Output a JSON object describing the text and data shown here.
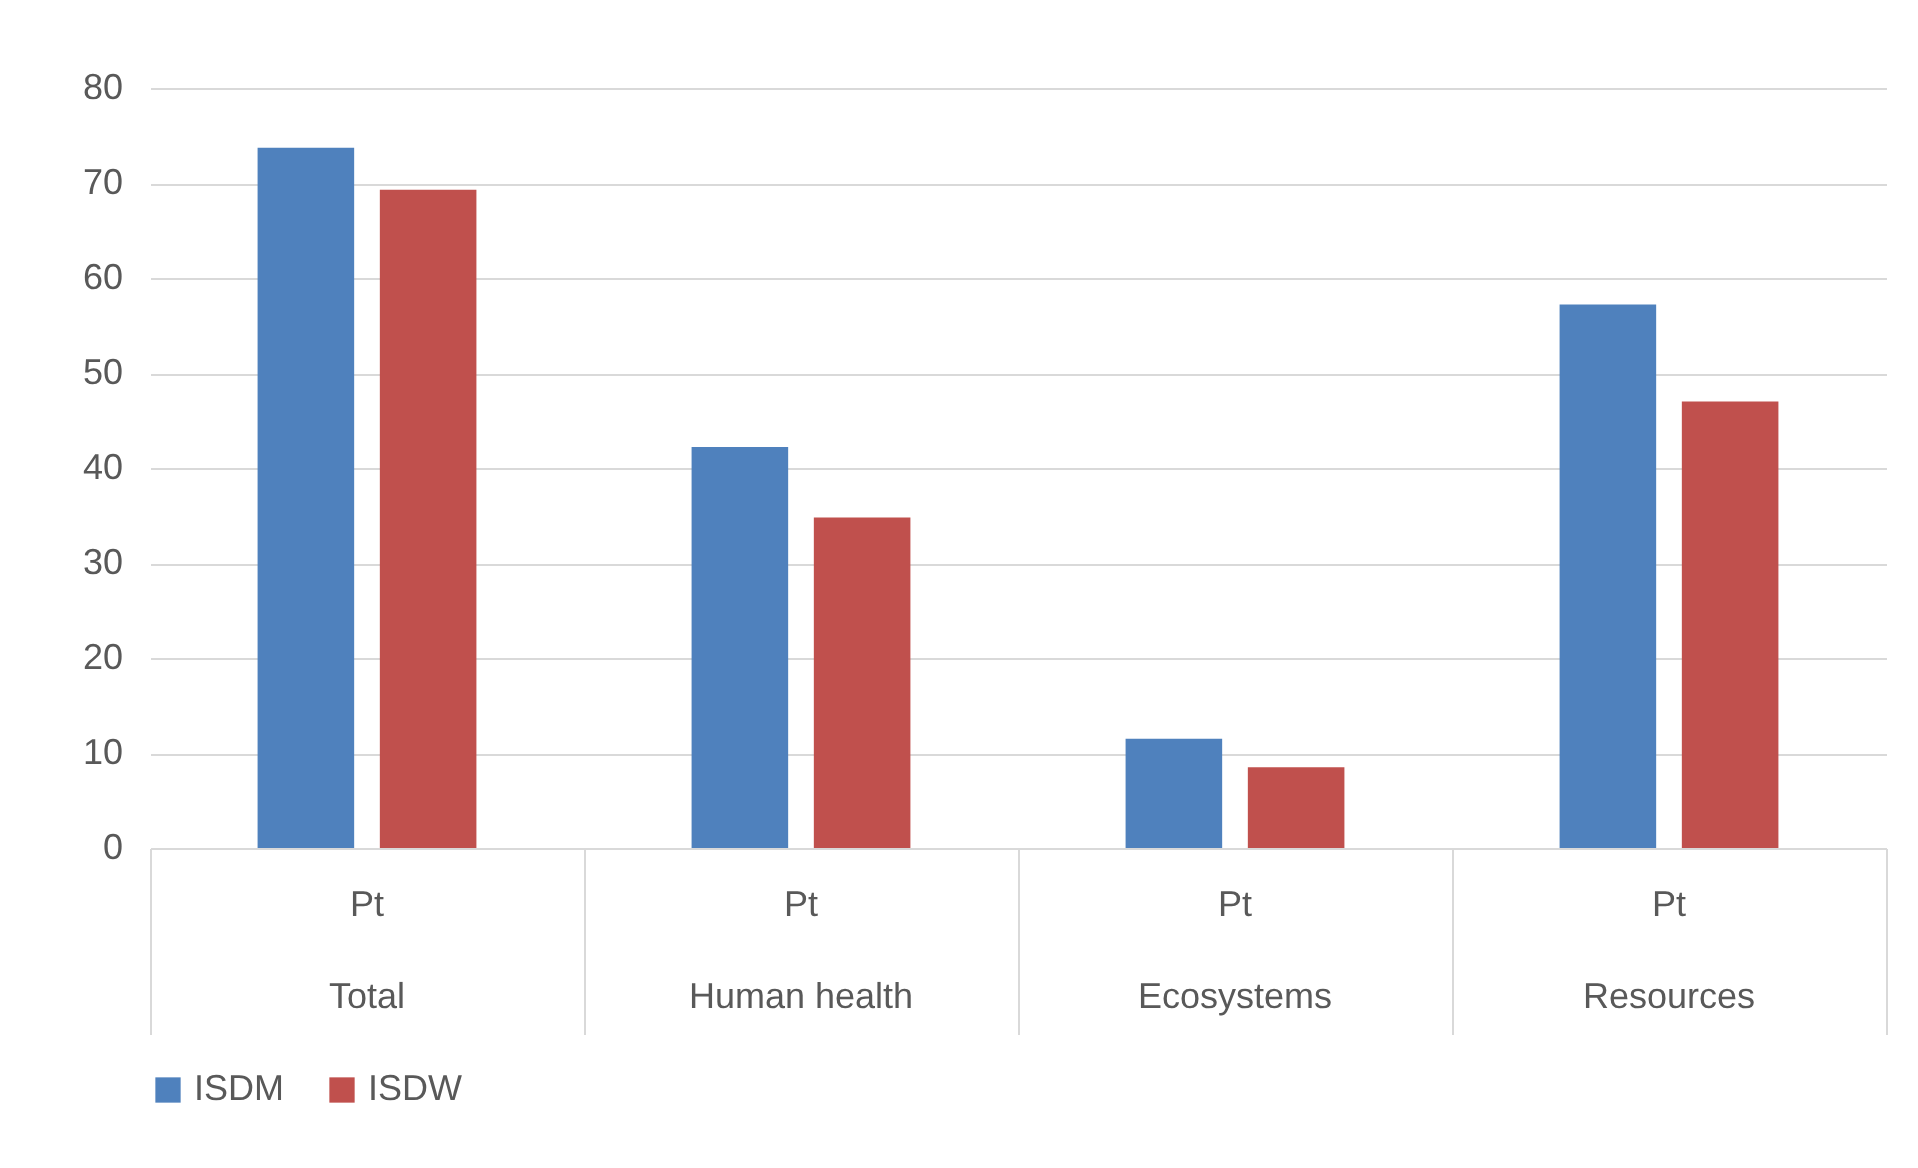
{
  "chart_data": {
    "type": "bar",
    "categories": [
      "Pt\nTotal",
      "Pt\nHuman health",
      "Pt\nEcosystems",
      "Pt\nResources"
    ],
    "series": [
      {
        "name": "ISDM",
        "color": "#4f81bd",
        "values": [
          73.7,
          42.2,
          11.5,
          57.2
        ]
      },
      {
        "name": "ISDW",
        "color": "#c0504d",
        "values": [
          69.3,
          34.8,
          8.5,
          47.0
        ]
      }
    ],
    "ylim": [
      0,
      80
    ],
    "yticks": [
      0,
      10,
      20,
      30,
      40,
      50,
      60,
      70,
      80
    ],
    "grid": "y",
    "legend": "bottom"
  }
}
